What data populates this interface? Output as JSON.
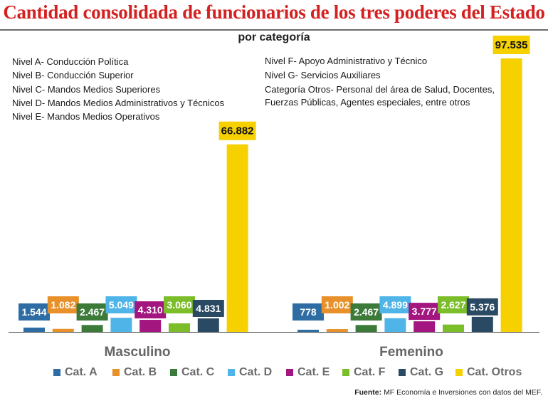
{
  "title": "Cantidad consolidada de funcionarios de los tres poderes del Estado",
  "subtitle": "por categoría",
  "notes_left": [
    "Nivel A- Conducción Política",
    "Nivel B- Conducción Superior",
    "Nivel C- Mandos Medios Superiores",
    "Nivel D- Mandos Medios Administrativos y Técnicos",
    "Nivel E- Mandos Medios Operativos"
  ],
  "notes_right": [
    "Nivel F- Apoyo Administrativo y Técnico",
    "Nivel G- Servicios Auxiliares",
    "Categoría Otros- Personal del área de Salud, Docentes,",
    "Fuerzas Públicas, Agentes especiales, entre otros"
  ],
  "source_label": "Fuente:",
  "source_text": "MF Economía e Inversiones con datos del MEF.",
  "chart_data": {
    "type": "bar",
    "categories": [
      "Cat. A",
      "Cat. B",
      "Cat. C",
      "Cat. D",
      "Cat. E",
      "Cat. F",
      "Cat. G",
      "Cat. Otros"
    ],
    "colors": [
      "#2e6da4",
      "#e8902a",
      "#3c7a3a",
      "#4fb4e8",
      "#a3157f",
      "#7cbd2a",
      "#2a4a63",
      "#f7d000"
    ],
    "groups": [
      {
        "name": "Masculino",
        "values": [
          1544,
          1082,
          2467,
          5049,
          4310,
          3060,
          4831,
          66882
        ],
        "labels": [
          "1.544",
          "1.082",
          "2.467",
          "5.049",
          "4.310",
          "3.060",
          "4.831",
          "66.882"
        ]
      },
      {
        "name": "Femenino",
        "values": [
          778,
          1002,
          2467,
          4899,
          3777,
          2627,
          5376,
          97535
        ],
        "labels": [
          "778",
          "1.002",
          "2.467",
          "4.899",
          "3.777",
          "2.627",
          "5.376",
          "97.535"
        ]
      }
    ],
    "ylim": [
      0,
      97535
    ],
    "legend_position": "bottom",
    "grid": false
  }
}
